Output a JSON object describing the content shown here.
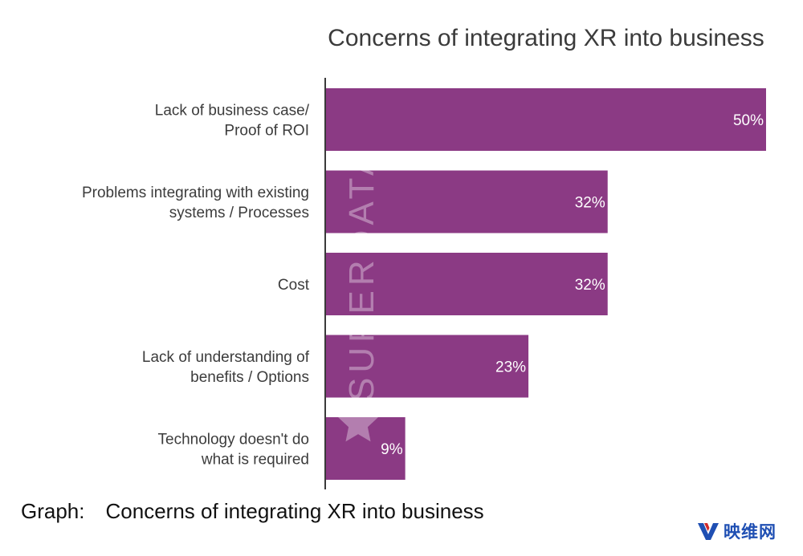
{
  "chart_data": {
    "type": "bar",
    "orientation": "horizontal",
    "title": "Concerns of integrating XR into business",
    "categories": [
      [
        "Lack of business case/",
        "Proof of ROI"
      ],
      [
        "Problems integrating with existing",
        "systems / Processes"
      ],
      [
        "Cost"
      ],
      [
        "Lack of understanding of",
        "benefits / Options"
      ],
      [
        "Technology doesn't do",
        "what is required"
      ]
    ],
    "values": [
      50,
      32,
      32,
      23,
      9
    ],
    "value_labels": [
      "50%",
      "32%",
      "32%",
      "23%",
      "9%"
    ],
    "xlim": [
      0,
      50
    ],
    "unit": "%",
    "grid": false,
    "bar_color": "#8b3a84"
  },
  "watermark": {
    "text": "SUPERDATA",
    "icon": "star-icon"
  },
  "caption": {
    "prefix": "Graph:",
    "text": "Concerns of integrating XR into business"
  },
  "logo": {
    "text": "映维网",
    "icon": "yingwei-logo-icon",
    "colors": [
      "#1f4fb3",
      "#d22a2a"
    ]
  }
}
